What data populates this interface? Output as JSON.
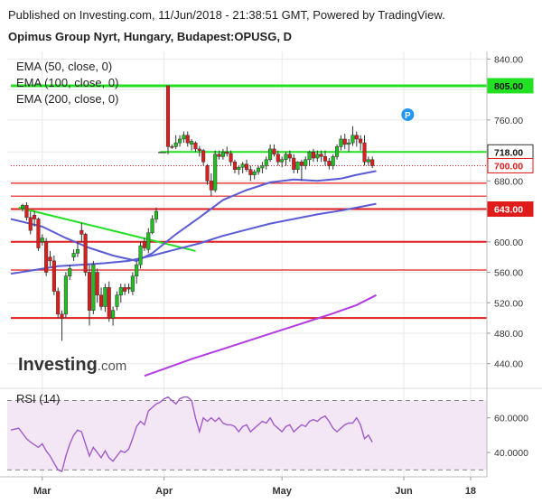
{
  "header": {
    "published": "Published on Investing.com, 11/Jun/2018 - 21:38:51 GMT, Powered by TradingView.",
    "instrument": "Opimus Group Nyrt, Hungary, Budapest:OPUSG, D"
  },
  "legend": [
    "EMA (50, close, 0)",
    "EMA (100, close, 0)",
    "EMA (200, close, 0)"
  ],
  "watermark": {
    "text": "Investing",
    "suffix": ".com"
  },
  "rsi_title": "RSI (14)",
  "x_ticks": [
    {
      "label": "Mar",
      "day": 8
    },
    {
      "label": "Apr",
      "day": 39
    },
    {
      "label": "May",
      "day": 69
    },
    {
      "label": "Jun",
      "day": 100
    },
    {
      "label": "18",
      "day": 117
    }
  ],
  "colors": {
    "up": "#1fbf1f",
    "down": "#e01b1b",
    "ema50": "#5b5bd6",
    "ema100": "#5b5bd6",
    "ema200": "#b23ce0",
    "green_line": "#22e022",
    "red_line": "#e01b1b",
    "rsi": "#a05cc8",
    "rsi_band": "#f3e6f5",
    "marker": "#2196f3",
    "grid": "#e8e8e8"
  },
  "chart_data": [
    {
      "type": "candlestick",
      "title": "Opimus Group Nyrt, Hungary, Budapest:OPUSG, D",
      "ylim": [
        410,
        850
      ],
      "y_ticks": [
        840,
        800,
        760,
        718,
        680,
        640,
        600,
        560,
        520,
        480,
        440
      ],
      "price_labels": [
        {
          "text": "805.00",
          "value": 805,
          "style": "green"
        },
        {
          "text": "718.00",
          "value": 718,
          "style": "outline"
        },
        {
          "text": "700.00",
          "value": 700,
          "style": "red-outline"
        },
        {
          "text": "643.00",
          "value": 643,
          "style": "red"
        }
      ],
      "hlines": [
        {
          "value": 805,
          "color": "green",
          "from_day": 0
        },
        {
          "value": 718,
          "color": "green",
          "from_day": 38
        },
        {
          "value": 700,
          "color": "red",
          "dotted": true,
          "from_day": 0
        },
        {
          "value": 677,
          "color": "red",
          "from_day": 0
        },
        {
          "value": 660,
          "color": "red",
          "from_day": 0
        },
        {
          "value": 643,
          "color": "red",
          "from_day": 0
        },
        {
          "value": 600,
          "color": "red",
          "from_day": 0
        },
        {
          "value": 563,
          "color": "red",
          "from_day": 0
        },
        {
          "value": 500,
          "color": "red",
          "from_day": 0
        }
      ],
      "trendline": {
        "from": [
          2,
          645
        ],
        "to": [
          47,
          588
        ]
      },
      "marker": {
        "label": "P",
        "day": 101,
        "value": 767
      },
      "candles": [
        [
          3,
          644,
          650,
          640,
          648
        ],
        [
          4,
          648,
          652,
          628,
          632
        ],
        [
          5,
          632,
          640,
          610,
          615
        ],
        [
          6,
          635,
          640,
          620,
          630
        ],
        [
          7,
          630,
          632,
          588,
          592
        ],
        [
          8,
          600,
          610,
          595,
          605
        ],
        [
          9,
          600,
          605,
          555,
          560
        ],
        [
          10,
          580,
          588,
          568,
          575
        ],
        [
          11,
          575,
          582,
          530,
          535
        ],
        [
          12,
          535,
          540,
          500,
          505
        ],
        [
          13,
          505,
          510,
          470,
          500
        ],
        [
          14,
          505,
          560,
          500,
          555
        ],
        [
          15,
          555,
          570,
          550,
          565
        ],
        [
          16,
          580,
          590,
          575,
          585
        ],
        [
          17,
          585,
          600,
          580,
          590
        ],
        [
          18,
          615,
          625,
          600,
          610
        ],
        [
          19,
          610,
          612,
          555,
          560
        ],
        [
          20,
          560,
          570,
          490,
          510
        ],
        [
          21,
          510,
          575,
          505,
          570
        ],
        [
          22,
          560,
          565,
          520,
          530
        ],
        [
          23,
          530,
          540,
          510,
          515
        ],
        [
          24,
          515,
          545,
          508,
          540
        ],
        [
          25,
          540,
          548,
          495,
          500
        ],
        [
          26,
          500,
          515,
          490,
          510
        ],
        [
          27,
          515,
          535,
          510,
          530
        ],
        [
          28,
          530,
          545,
          520,
          540
        ],
        [
          29,
          540,
          545,
          530,
          535
        ],
        [
          30,
          540,
          545,
          532,
          538
        ],
        [
          31,
          535,
          560,
          530,
          555
        ],
        [
          32,
          555,
          575,
          545,
          570
        ],
        [
          33,
          570,
          600,
          565,
          595
        ],
        [
          34,
          600,
          605,
          588,
          592
        ],
        [
          35,
          590,
          618,
          585,
          612
        ],
        [
          36,
          612,
          635,
          610,
          630
        ],
        [
          37,
          630,
          645,
          625,
          640
        ],
        [
          38,
          718,
          718,
          718,
          718
        ],
        [
          39,
          718,
          718,
          718,
          718
        ],
        [
          40,
          805,
          805,
          715,
          725
        ],
        [
          41,
          725,
          728,
          722,
          724
        ],
        [
          42,
          725,
          740,
          722,
          730
        ],
        [
          43,
          730,
          740,
          725,
          735
        ],
        [
          44,
          735,
          745,
          730,
          740
        ],
        [
          45,
          740,
          745,
          725,
          730
        ],
        [
          46,
          728,
          735,
          720,
          732
        ],
        [
          47,
          730,
          732,
          718,
          722
        ],
        [
          48,
          722,
          726,
          712,
          720
        ],
        [
          49,
          720,
          722,
          700,
          705
        ],
        [
          50,
          700,
          702,
          675,
          680
        ],
        [
          51,
          680,
          690,
          660,
          668
        ],
        [
          52,
          668,
          720,
          665,
          715
        ],
        [
          53,
          715,
          720,
          708,
          712
        ],
        [
          54,
          712,
          722,
          708,
          718
        ],
        [
          55,
          718,
          725,
          712,
          716
        ],
        [
          56,
          716,
          720,
          700,
          705
        ],
        [
          57,
          705,
          708,
          690,
          695
        ],
        [
          58,
          695,
          700,
          688,
          698
        ],
        [
          59,
          698,
          705,
          690,
          702
        ],
        [
          60,
          702,
          708,
          692,
          695
        ],
        [
          61,
          695,
          700,
          680,
          688
        ],
        [
          62,
          688,
          695,
          682,
          692
        ],
        [
          63,
          692,
          700,
          688,
          697
        ],
        [
          64,
          697,
          705,
          690,
          700
        ],
        [
          65,
          700,
          712,
          695,
          708
        ],
        [
          66,
          708,
          728,
          705,
          722
        ],
        [
          67,
          722,
          728,
          712,
          715
        ],
        [
          68,
          715,
          720,
          700,
          705
        ],
        [
          69,
          705,
          712,
          698,
          708
        ],
        [
          70,
          708,
          718,
          700,
          715
        ],
        [
          71,
          715,
          720,
          705,
          710
        ],
        [
          72,
          710,
          715,
          690,
          695
        ],
        [
          73,
          695,
          706,
          690,
          705
        ],
        [
          74,
          705,
          708,
          680,
          700
        ],
        [
          75,
          700,
          712,
          695,
          708
        ],
        [
          76,
          708,
          720,
          700,
          718
        ],
        [
          77,
          718,
          722,
          705,
          710
        ],
        [
          78,
          710,
          720,
          705,
          715
        ],
        [
          79,
          715,
          720,
          705,
          712
        ],
        [
          80,
          712,
          720,
          700,
          706
        ],
        [
          81,
          706,
          710,
          695,
          700
        ],
        [
          82,
          700,
          715,
          695,
          712
        ],
        [
          83,
          712,
          728,
          708,
          725
        ],
        [
          84,
          725,
          740,
          720,
          735
        ],
        [
          85,
          735,
          742,
          722,
          728
        ],
        [
          86,
          728,
          735,
          718,
          730
        ],
        [
          87,
          730,
          752,
          726,
          740
        ],
        [
          88,
          740,
          745,
          725,
          735
        ],
        [
          89,
          735,
          740,
          720,
          730
        ],
        [
          90,
          730,
          740,
          700,
          705
        ],
        [
          91,
          705,
          712,
          700,
          708
        ],
        [
          92,
          708,
          712,
          697,
          700
        ]
      ],
      "ema50": [
        [
          0,
          630
        ],
        [
          8,
          620
        ],
        [
          14,
          605
        ],
        [
          20,
          592
        ],
        [
          26,
          582
        ],
        [
          32,
          575
        ],
        [
          36,
          585
        ],
        [
          42,
          610
        ],
        [
          48,
          632
        ],
        [
          54,
          655
        ],
        [
          60,
          668
        ],
        [
          66,
          678
        ],
        [
          72,
          682
        ],
        [
          78,
          680
        ],
        [
          84,
          683
        ],
        [
          88,
          688
        ],
        [
          93,
          693
        ]
      ],
      "ema100": [
        [
          0,
          558
        ],
        [
          6,
          563
        ],
        [
          12,
          568
        ],
        [
          18,
          570
        ],
        [
          24,
          572
        ],
        [
          30,
          575
        ],
        [
          36,
          582
        ],
        [
          42,
          590
        ],
        [
          48,
          598
        ],
        [
          54,
          608
        ],
        [
          60,
          616
        ],
        [
          66,
          624
        ],
        [
          72,
          630
        ],
        [
          78,
          636
        ],
        [
          84,
          641
        ],
        [
          88,
          645
        ],
        [
          93,
          650
        ]
      ],
      "ema200": [
        [
          34,
          424
        ],
        [
          40,
          435
        ],
        [
          46,
          446
        ],
        [
          52,
          456
        ],
        [
          58,
          466
        ],
        [
          64,
          476
        ],
        [
          70,
          486
        ],
        [
          76,
          496
        ],
        [
          82,
          506
        ],
        [
          88,
          517
        ],
        [
          93,
          530
        ]
      ]
    },
    {
      "type": "line",
      "title": "RSI (14)",
      "ylim": [
        26,
        76
      ],
      "y_ticks": [
        60,
        40
      ],
      "band": [
        30,
        70
      ],
      "values": [
        [
          0,
          53
        ],
        [
          2,
          54
        ],
        [
          4,
          48
        ],
        [
          5,
          46
        ],
        [
          7,
          43
        ],
        [
          8,
          45
        ],
        [
          9,
          41
        ],
        [
          10,
          38
        ],
        [
          11,
          34
        ],
        [
          12,
          30
        ],
        [
          13,
          29
        ],
        [
          14,
          38
        ],
        [
          15,
          45
        ],
        [
          16,
          50
        ],
        [
          17,
          53
        ],
        [
          18,
          52
        ],
        [
          19,
          45
        ],
        [
          20,
          38
        ],
        [
          21,
          43
        ],
        [
          22,
          40
        ],
        [
          23,
          37
        ],
        [
          24,
          41
        ],
        [
          25,
          37
        ],
        [
          26,
          35
        ],
        [
          27,
          38
        ],
        [
          28,
          41
        ],
        [
          29,
          40
        ],
        [
          30,
          42
        ],
        [
          31,
          48
        ],
        [
          32,
          55
        ],
        [
          33,
          58
        ],
        [
          34,
          56
        ],
        [
          35,
          64
        ],
        [
          36,
          66
        ],
        [
          37,
          68
        ],
        [
          38,
          69
        ],
        [
          39,
          71
        ],
        [
          40,
          72
        ],
        [
          41,
          70
        ],
        [
          42,
          68
        ],
        [
          43,
          71
        ],
        [
          44,
          72
        ],
        [
          45,
          72
        ],
        [
          46,
          70
        ],
        [
          47,
          60
        ],
        [
          48,
          52
        ],
        [
          49,
          60
        ],
        [
          50,
          58
        ],
        [
          51,
          60
        ],
        [
          52,
          58
        ],
        [
          53,
          60
        ],
        [
          54,
          57
        ],
        [
          55,
          56
        ],
        [
          56,
          56
        ],
        [
          57,
          55
        ],
        [
          58,
          52
        ],
        [
          59,
          55
        ],
        [
          60,
          56
        ],
        [
          61,
          52
        ],
        [
          62,
          54
        ],
        [
          63,
          56
        ],
        [
          64,
          58
        ],
        [
          65,
          57
        ],
        [
          66,
          60
        ],
        [
          67,
          56
        ],
        [
          68,
          54
        ],
        [
          69,
          52
        ],
        [
          70,
          55
        ],
        [
          71,
          56
        ],
        [
          72,
          52
        ],
        [
          73,
          54
        ],
        [
          74,
          56
        ],
        [
          75,
          55
        ],
        [
          76,
          58
        ],
        [
          77,
          59
        ],
        [
          78,
          58
        ],
        [
          79,
          60
        ],
        [
          80,
          61
        ],
        [
          81,
          58
        ],
        [
          82,
          54
        ],
        [
          83,
          52
        ],
        [
          84,
          54
        ],
        [
          85,
          56
        ],
        [
          86,
          57
        ],
        [
          87,
          57
        ],
        [
          88,
          60
        ],
        [
          89,
          56
        ],
        [
          90,
          48
        ],
        [
          91,
          50
        ],
        [
          92,
          46
        ]
      ]
    }
  ]
}
